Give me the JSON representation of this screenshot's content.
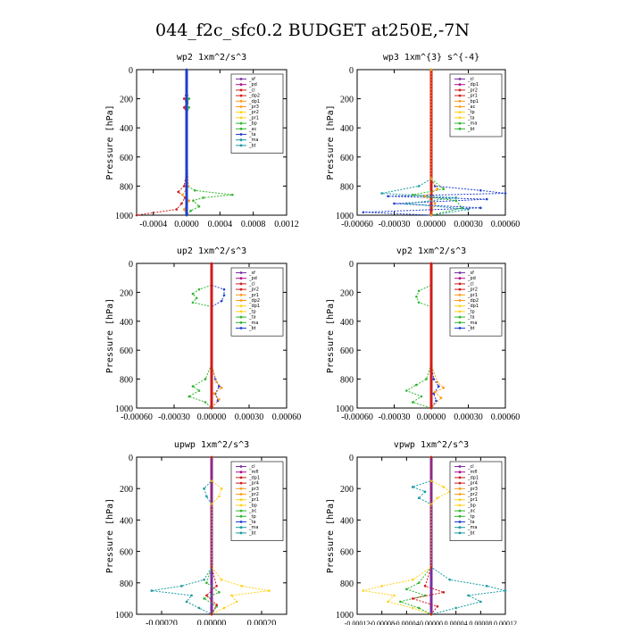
{
  "figure_title": "044_f2c_sfc0.2  BUDGET at250E,-7N",
  "chart_data": [
    {
      "type": "line",
      "title": "wp2   1xm^2/s^3",
      "ylabel": "Pressure [hPa]",
      "xlim": [
        -0.0006,
        0.0012
      ],
      "ylim": [
        1000,
        0
      ],
      "y_ticks": [
        0,
        200,
        400,
        600,
        800,
        1000
      ],
      "x_ticks": [
        -0.0004,
        0,
        0.0004,
        0.0008,
        0.0012
      ],
      "x_tick_labels": [
        "-0.0004",
        "0.0000",
        "0.0004",
        "0.0008",
        "0.0012"
      ],
      "legend": [
        "_sf",
        "_pd",
        "_cl",
        "_dp2",
        "_dp1",
        "_pr3",
        "_pr2",
        "_pr1",
        "_bp",
        "_ac",
        "_ta",
        "_ma",
        "_bt"
      ],
      "series": [
        {
          "name": "_sf",
          "color": "#7b2ea0",
          "p": [
            0,
            100,
            200,
            300,
            400,
            500,
            600,
            700,
            800,
            900,
            1000
          ],
          "v": [
            0,
            0,
            0,
            0,
            0,
            0,
            0,
            0,
            0,
            0,
            0
          ]
        },
        {
          "name": "_dp1",
          "color": "#d01c1c",
          "p": [
            0,
            150,
            200,
            230,
            260,
            300,
            500,
            700,
            800,
            840,
            880,
            920,
            960,
            1000
          ],
          "v": [
            0,
            0,
            -3e-05,
            0,
            -3e-05,
            0,
            0,
            0,
            -3e-05,
            -0.0001,
            -2e-05,
            -6e-05,
            -0.00012,
            -0.0006
          ]
        },
        {
          "name": "_bp",
          "color": "#2fb52f",
          "p": [
            0,
            150,
            200,
            230,
            260,
            300,
            500,
            700,
            800,
            830,
            860,
            880,
            900,
            940,
            970,
            1000
          ],
          "v": [
            0,
            0,
            3e-05,
            1e-05,
            3e-05,
            0,
            0,
            0,
            1e-05,
            0.0001,
            0.00055,
            0.0002,
            8e-05,
            0.00015,
            5e-05,
            0
          ]
        },
        {
          "name": "_pr3",
          "color": "#ff9a1a",
          "p": [
            0,
            500,
            800,
            860,
            900,
            960,
            1000
          ],
          "v": [
            0,
            0,
            2e-05,
            -5e-05,
            3e-05,
            -3e-05,
            0
          ]
        },
        {
          "name": "_ac",
          "color": "#1f3fd0",
          "p": [
            0,
            500,
            800,
            1000
          ],
          "v": [
            0,
            0,
            0,
            0
          ]
        }
      ]
    },
    {
      "type": "line",
      "title": "wp3   1xm^{3} s^{-4}",
      "ylabel": "Pressure [hPa]",
      "xlim": [
        -0.0006,
        0.0006
      ],
      "ylim": [
        1000,
        0
      ],
      "y_ticks": [
        0,
        200,
        400,
        600,
        800,
        1000
      ],
      "x_ticks": [
        -0.0006,
        -0.0003,
        0,
        0.0003,
        0.0006
      ],
      "x_tick_labels": [
        "-0.00060",
        "-0.00030",
        "0.00000",
        "0.00030",
        "0.00060"
      ],
      "legend": [
        "_cl",
        "_dp1",
        "_pr2",
        "_pr1",
        "_bp1",
        "_ac",
        "_tp",
        "_ta",
        "_ma",
        "_bt"
      ],
      "series": [
        {
          "name": "_cl",
          "color": "#d01c1c",
          "p": [
            0,
            100,
            200,
            300,
            400,
            500,
            600,
            700,
            800,
            900,
            1000
          ],
          "v": [
            0,
            0,
            0,
            0,
            0,
            0,
            0,
            0,
            0,
            0,
            0
          ]
        },
        {
          "name": "_tp",
          "color": "#1f3fd0",
          "p": [
            0,
            750,
            800,
            830,
            850,
            870,
            890,
            920,
            950,
            980,
            1000
          ],
          "v": [
            0,
            0,
            3e-05,
            0.0004,
            0.0006,
            -0.00035,
            0.00045,
            -0.0003,
            0.0004,
            -0.00055,
            0
          ]
        },
        {
          "name": "_ta",
          "color": "#1a9aa0",
          "p": [
            0,
            750,
            800,
            850,
            880,
            920,
            960,
            1000
          ],
          "v": [
            0,
            0,
            -0.0001,
            -0.0004,
            0.0002,
            -0.0002,
            0.0003,
            0
          ]
        },
        {
          "name": "_ac",
          "color": "#2fb52f",
          "p": [
            0,
            750,
            820,
            860,
            900,
            950,
            1000
          ],
          "v": [
            0,
            0,
            0.0001,
            -0.00015,
            0.0002,
            0.00025,
            0
          ]
        },
        {
          "name": "_pr2",
          "color": "#ff9a1a",
          "p": [
            0,
            750,
            820,
            870,
            920,
            1000
          ],
          "v": [
            0,
            0,
            5e-05,
            -5e-05,
            3e-05,
            0
          ]
        }
      ]
    },
    {
      "type": "line",
      "title": "up2   1xm^2/s^3",
      "ylabel": "Pressure [hPa]",
      "xlim": [
        -0.0006,
        0.0006
      ],
      "ylim": [
        1000,
        0
      ],
      "y_ticks": [
        0,
        200,
        400,
        600,
        800,
        1000
      ],
      "x_ticks": [
        -0.0006,
        -0.0003,
        0,
        0.0003,
        0.0006
      ],
      "x_tick_labels": [
        "-0.00060",
        "-0.00030",
        "0.00000",
        "0.00030",
        "0.00060"
      ],
      "legend": [
        "_sf",
        "_pd",
        "_cl",
        "_pr2",
        "_pr1",
        "_dp2",
        "_dp1",
        "_tp",
        "_ta",
        "_ma",
        "_bt"
      ],
      "series": [
        {
          "name": "_sf",
          "color": "#7b2ea0",
          "p": [
            0,
            200,
            400,
            600,
            800,
            1000
          ],
          "v": [
            0,
            0,
            0,
            0,
            0,
            0
          ]
        },
        {
          "name": "_dp1",
          "color": "#2fb52f",
          "p": [
            0,
            150,
            180,
            210,
            240,
            270,
            300,
            700,
            800,
            850,
            880,
            920,
            960,
            1000
          ],
          "v": [
            0,
            0,
            -0.0001,
            -0.00015,
            -0.00012,
            -0.00015,
            0,
            0,
            -5e-05,
            -0.00015,
            -0.0001,
            -0.00018,
            -5e-05,
            0
          ]
        },
        {
          "name": "_tp",
          "color": "#1f3fd0",
          "p": [
            0,
            150,
            180,
            220,
            260,
            300,
            700,
            800,
            850,
            900,
            950,
            1000
          ],
          "v": [
            0,
            0,
            0.0001,
            0.0001,
            8e-05,
            0,
            0,
            3e-05,
            6e-05,
            3e-05,
            5e-05,
            0
          ]
        },
        {
          "name": "_pr1",
          "color": "#ff9a1a",
          "p": [
            0,
            700,
            820,
            860,
            900,
            940,
            1000
          ],
          "v": [
            0,
            0,
            4e-05,
            8e-05,
            2e-05,
            6e-05,
            0
          ]
        },
        {
          "name": "_cl",
          "color": "#d01c1c",
          "p": [
            0,
            200,
            400,
            600,
            800,
            1000
          ],
          "v": [
            0,
            0,
            0,
            0,
            0,
            0
          ]
        }
      ]
    },
    {
      "type": "line",
      "title": "vp2   1xm^2/s^3",
      "ylabel": "Pressure [hPa]",
      "xlim": [
        -0.0006,
        0.0006
      ],
      "ylim": [
        1000,
        0
      ],
      "y_ticks": [
        0,
        200,
        400,
        600,
        800,
        1000
      ],
      "x_ticks": [
        -0.0006,
        -0.0003,
        0,
        0.0003,
        0.0006
      ],
      "x_tick_labels": [
        "-0.00060",
        "-0.00030",
        "0.00000",
        "0.00030",
        "0.00060"
      ],
      "legend": [
        "_sf",
        "_pd",
        "_cl",
        "_pr2",
        "_pr1",
        "_dp2",
        "_dp1",
        "_tp",
        "_ta",
        "_ma",
        "_bt"
      ],
      "series": [
        {
          "name": "_sf",
          "color": "#7b2ea0",
          "p": [
            0,
            200,
            400,
            600,
            800,
            1000
          ],
          "v": [
            0,
            0,
            0,
            0,
            0,
            0
          ]
        },
        {
          "name": "_dp1",
          "color": "#2fb52f",
          "p": [
            0,
            150,
            190,
            230,
            270,
            300,
            700,
            800,
            840,
            880,
            920,
            960,
            1000
          ],
          "v": [
            0,
            0,
            -0.0001,
            -0.00012,
            -0.0001,
            0,
            0,
            -4e-05,
            -0.00012,
            -0.0002,
            -8e-05,
            -0.00015,
            0
          ]
        },
        {
          "name": "_tp",
          "color": "#1f3fd0",
          "p": [
            0,
            700,
            800,
            850,
            900,
            950,
            1000
          ],
          "v": [
            0,
            0,
            2e-05,
            6e-05,
            2e-05,
            4e-05,
            0
          ]
        },
        {
          "name": "_pr1",
          "color": "#ff9a1a",
          "p": [
            0,
            700,
            820,
            860,
            890,
            930,
            1000
          ],
          "v": [
            0,
            0,
            5e-05,
            0.0001,
            3e-05,
            8e-05,
            0
          ]
        },
        {
          "name": "_cl",
          "color": "#d01c1c",
          "p": [
            0,
            200,
            400,
            600,
            800,
            1000
          ],
          "v": [
            0,
            0,
            0,
            0,
            0,
            0
          ]
        }
      ]
    },
    {
      "type": "line",
      "title": "upwp   1xm^2/s^3",
      "ylabel": "Pressure [hPa]",
      "xlim": [
        -0.0003,
        0.0003
      ],
      "ylim": [
        1000,
        0
      ],
      "y_ticks": [
        0,
        200,
        400,
        600,
        800,
        1000
      ],
      "x_ticks": [
        -0.0002,
        0,
        0.0002
      ],
      "x_tick_labels": [
        "-0.00020",
        "0.00000",
        "0.00020"
      ],
      "legend": [
        "_cl",
        "_mfl",
        "_dp1",
        "_pr4",
        "_pr3",
        "_pr2",
        "_pr1",
        "_bp",
        "_ac",
        "_tp",
        "_ta",
        "_ma",
        "_bt"
      ],
      "series": [
        {
          "name": "_cl",
          "color": "#7b2ea0",
          "p": [
            0,
            200,
            400,
            600,
            800,
            1000
          ],
          "v": [
            0,
            0,
            0,
            0,
            0,
            0
          ]
        },
        {
          "name": "_tp",
          "color": "#1a9aa0",
          "p": [
            0,
            150,
            200,
            250,
            300,
            700,
            780,
            820,
            850,
            880,
            920,
            960,
            1000
          ],
          "v": [
            0,
            0,
            -3e-05,
            -2e-05,
            0,
            0,
            -3e-05,
            -0.00012,
            -0.00024,
            -8e-05,
            -0.0001,
            -5e-05,
            0
          ]
        },
        {
          "name": "_pr1",
          "color": "#ffd21a",
          "p": [
            0,
            150,
            200,
            250,
            300,
            700,
            780,
            820,
            850,
            880,
            920,
            960,
            1000
          ],
          "v": [
            0,
            0,
            4e-05,
            3e-05,
            0,
            0,
            4e-05,
            0.00012,
            0.00023,
            8e-05,
            0.0001,
            5e-05,
            0
          ]
        },
        {
          "name": "_bp",
          "color": "#2fb52f",
          "p": [
            0,
            700,
            800,
            860,
            900,
            950,
            1000
          ],
          "v": [
            0,
            0,
            -2e-05,
            3e-05,
            -3e-05,
            2e-05,
            0
          ]
        },
        {
          "name": "_pr4",
          "color": "#d01c1c",
          "p": [
            0,
            700,
            820,
            880,
            940,
            1000
          ],
          "v": [
            0,
            0,
            2e-05,
            -2e-05,
            2e-05,
            0
          ]
        }
      ]
    },
    {
      "type": "line",
      "title": "vpwp   1xm^2/s^3",
      "ylabel": "Pressure [hPa]",
      "xlim": [
        -0.00012,
        0.00012
      ],
      "ylim": [
        1000,
        0
      ],
      "y_ticks": [
        0,
        200,
        400,
        600,
        800,
        1000
      ],
      "x_ticks": [
        -0.00012,
        -8e-05,
        -4e-05,
        0,
        4e-05,
        8e-05,
        0.00012
      ],
      "x_tick_labels": [
        "-0.00012",
        "-0.00008",
        "-0.00004",
        "0.00000",
        "0.00004",
        "0.00008",
        "0.00012"
      ],
      "legend": [
        "_cl",
        "_mfl",
        "_dp1",
        "_pr4",
        "_pr3",
        "_pr2",
        "_pr1",
        "_bp",
        "_ac",
        "_tp",
        "_ta",
        "_ma",
        "_bt"
      ],
      "series": [
        {
          "name": "_cl",
          "color": "#7b2ea0",
          "p": [
            0,
            200,
            400,
            600,
            800,
            1000
          ],
          "v": [
            0,
            0,
            0,
            0,
            0,
            0
          ]
        },
        {
          "name": "_tp",
          "color": "#1a9aa0",
          "p": [
            0,
            150,
            190,
            220,
            260,
            300,
            700,
            780,
            820,
            850,
            880,
            920,
            960,
            1000
          ],
          "v": [
            0,
            0,
            -3e-05,
            -1e-05,
            -2e-05,
            0,
            0,
            3e-05,
            9e-05,
            0.00012,
            6e-05,
            8e-05,
            4e-05,
            0
          ]
        },
        {
          "name": "_pr1",
          "color": "#ffd21a",
          "p": [
            0,
            150,
            190,
            220,
            260,
            300,
            700,
            780,
            820,
            850,
            880,
            920,
            960,
            1000
          ],
          "v": [
            0,
            0,
            2e-05,
            3e-05,
            1e-05,
            0,
            0,
            -3e-05,
            -8e-05,
            -0.00011,
            -6e-05,
            -7e-05,
            -3e-05,
            0
          ]
        },
        {
          "name": "_bp",
          "color": "#2fb52f",
          "p": [
            0,
            700,
            800,
            840,
            880,
            920,
            960,
            1000
          ],
          "v": [
            0,
            0,
            -2e-05,
            -4e-05,
            -1e-05,
            -5e-05,
            -2e-05,
            0
          ]
        },
        {
          "name": "_pr4",
          "color": "#d01c1c",
          "p": [
            0,
            700,
            820,
            860,
            900,
            950,
            1000
          ],
          "v": [
            0,
            0,
            -1e-05,
            2e-05,
            -3e-05,
            1e-05,
            0
          ]
        }
      ]
    }
  ]
}
